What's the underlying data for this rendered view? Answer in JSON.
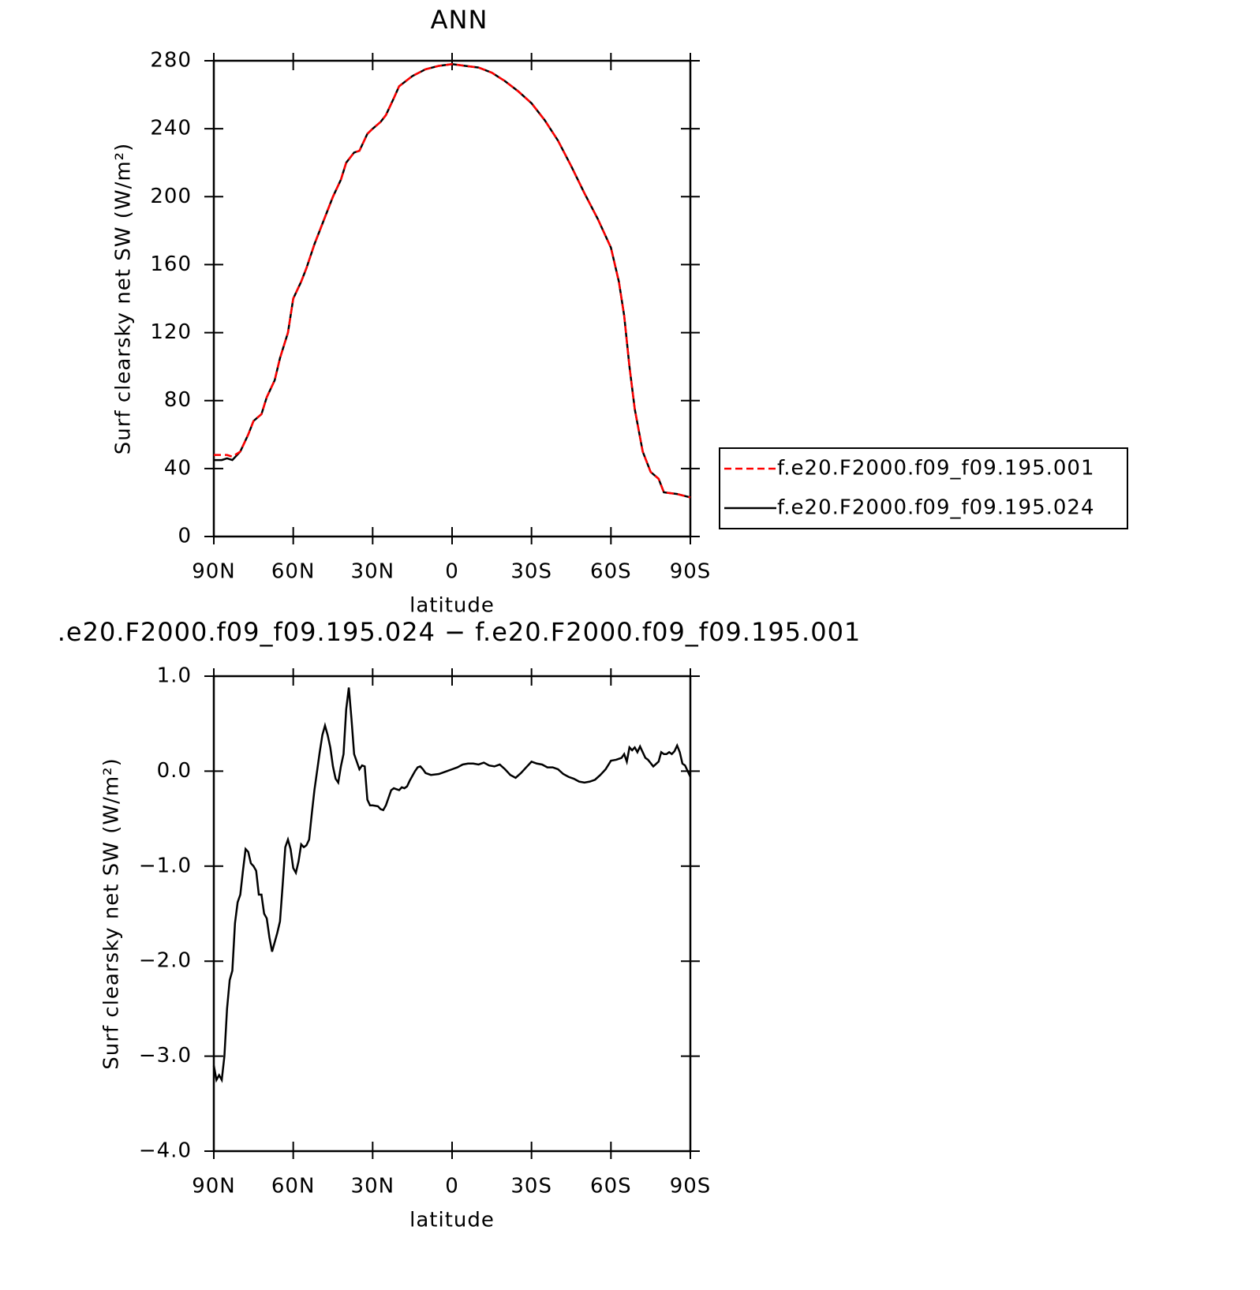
{
  "chart_data": [
    {
      "type": "line",
      "title": "ANN",
      "xlabel": "latitude",
      "ylabel": "Surf clearsky net SW (W/m²)",
      "xlim": [
        90,
        -90
      ],
      "xticks": [
        {
          "value": 90,
          "label": "90N"
        },
        {
          "value": 60,
          "label": "60N"
        },
        {
          "value": 30,
          "label": "30N"
        },
        0,
        {
          "value": -30,
          "label": "30S"
        },
        {
          "value": -60,
          "label": "60S"
        },
        {
          "value": -90,
          "label": "90S"
        }
      ],
      "ylim": [
        0,
        280
      ],
      "yticks": [
        0,
        40,
        80,
        120,
        160,
        200,
        240,
        280
      ],
      "legend": "right",
      "x": [
        90,
        87,
        85,
        83,
        80,
        77,
        75,
        72,
        70,
        67,
        65,
        62,
        60,
        57,
        55,
        52,
        50,
        47,
        45,
        42,
        40,
        37,
        35,
        32,
        30,
        27,
        25,
        22,
        20,
        15,
        10,
        5,
        0,
        -5,
        -10,
        -15,
        -20,
        -25,
        -30,
        -35,
        -40,
        -45,
        -50,
        -55,
        -60,
        -63,
        -65,
        -67,
        -69,
        -72,
        -75,
        -78,
        -80,
        -85,
        -90
      ],
      "series": [
        {
          "name": "f.e20.F2000.f09_f09.195.001",
          "color": "#ff0000",
          "linestyle": "dashed",
          "values": [
            48,
            48,
            48,
            47,
            50,
            60,
            68,
            72,
            82,
            92,
            105,
            120,
            140,
            150,
            158,
            172,
            180,
            192,
            200,
            210,
            220,
            226,
            227,
            237,
            240,
            244,
            248,
            258,
            265,
            271,
            275,
            277,
            278,
            277,
            276,
            273,
            268,
            262,
            255,
            245,
            233,
            218,
            202,
            187,
            170,
            150,
            130,
            100,
            75,
            50,
            38,
            34,
            26,
            25,
            23
          ]
        },
        {
          "name": "f.e20.F2000.f09_f09.195.024",
          "color": "#000000",
          "linestyle": "solid",
          "values": [
            45,
            45,
            46,
            45,
            50,
            60,
            68,
            72,
            82,
            92,
            105,
            120,
            140,
            150,
            158,
            172,
            180,
            192,
            200,
            210,
            220,
            226,
            227,
            237,
            240,
            244,
            248,
            258,
            265,
            271,
            275,
            277,
            278,
            277,
            276,
            273,
            268,
            262,
            255,
            245,
            233,
            218,
            202,
            187,
            170,
            150,
            130,
            100,
            75,
            50,
            38,
            34,
            26,
            25,
            23
          ]
        }
      ]
    },
    {
      "type": "line",
      "title": ".e20.F2000.f09_f09.195.024 − f.e20.F2000.f09_f09.195.001",
      "xlabel": "latitude",
      "ylabel": "Surf clearsky net SW (W/m²)",
      "xlim": [
        90,
        -90
      ],
      "xticks": [
        {
          "value": 90,
          "label": "90N"
        },
        {
          "value": 60,
          "label": "60N"
        },
        {
          "value": 30,
          "label": "30N"
        },
        0,
        {
          "value": -30,
          "label": "30S"
        },
        {
          "value": -60,
          "label": "60S"
        },
        {
          "value": -90,
          "label": "90S"
        }
      ],
      "ylim": [
        -4,
        1
      ],
      "yticks": [
        {
          "value": 1,
          "label": "1.0"
        },
        {
          "value": 0,
          "label": "0.0"
        },
        {
          "value": -1,
          "label": "−1.0"
        },
        {
          "value": -2,
          "label": "−2.0"
        },
        {
          "value": -3,
          "label": "−3.0"
        },
        {
          "value": -4,
          "label": "−4.0"
        }
      ],
      "x": [
        90,
        89,
        88,
        87,
        86,
        85,
        84,
        83,
        82,
        81,
        80,
        79,
        78,
        77,
        76,
        75,
        74,
        73,
        72,
        71,
        70,
        69,
        68,
        67,
        66,
        65,
        64,
        63,
        62,
        61,
        60,
        59,
        58,
        57,
        56,
        55,
        54,
        53,
        52,
        51,
        50,
        49,
        48,
        47,
        46,
        45,
        44,
        43,
        42,
        41,
        40,
        39,
        38,
        37,
        36,
        35,
        34,
        33,
        32,
        31,
        30,
        28,
        27,
        26,
        25,
        24,
        23,
        22,
        21,
        20,
        19,
        18,
        17,
        16,
        15,
        14,
        13,
        12,
        11,
        10,
        8,
        5,
        2,
        0,
        -2,
        -4,
        -6,
        -8,
        -10,
        -12,
        -14,
        -16,
        -17,
        -18,
        -20,
        -22,
        -24,
        -26,
        -28,
        -30,
        -32,
        -34,
        -36,
        -38,
        -40,
        -42,
        -44,
        -46,
        -48,
        -50,
        -52,
        -54,
        -56,
        -58,
        -60,
        -62,
        -64,
        -65,
        -66,
        -67,
        -68,
        -69,
        -70,
        -71,
        -72,
        -73,
        -74,
        -76,
        -78,
        -79,
        -80,
        -81,
        -82,
        -83,
        -84,
        -85,
        -86,
        -87,
        -88,
        -89,
        -90
      ],
      "series": [
        {
          "color": "#000000",
          "linestyle": "solid",
          "values": [
            -3.1,
            -3.25,
            -3.2,
            -3.25,
            -3.0,
            -2.5,
            -2.2,
            -2.1,
            -1.6,
            -1.38,
            -1.3,
            -1.05,
            -0.82,
            -0.85,
            -0.97,
            -1.0,
            -1.05,
            -1.3,
            -1.3,
            -1.5,
            -1.55,
            -1.75,
            -1.9,
            -1.8,
            -1.7,
            -1.58,
            -1.2,
            -0.8,
            -0.72,
            -0.82,
            -1.02,
            -1.07,
            -0.95,
            -0.77,
            -0.8,
            -0.78,
            -0.72,
            -0.45,
            -0.2,
            0.0,
            0.2,
            0.38,
            0.48,
            0.38,
            0.25,
            0.05,
            -0.08,
            -0.12,
            0.05,
            0.18,
            0.65,
            0.88,
            0.55,
            0.18,
            0.1,
            0.02,
            0.06,
            0.05,
            -0.3,
            -0.36,
            -0.36,
            -0.37,
            -0.4,
            -0.41,
            -0.36,
            -0.28,
            -0.2,
            -0.18,
            -0.19,
            -0.2,
            -0.17,
            -0.18,
            -0.16,
            -0.1,
            -0.05,
            0.0,
            0.04,
            0.05,
            0.02,
            -0.02,
            -0.04,
            -0.03,
            0.0,
            0.02,
            0.04,
            0.07,
            0.08,
            0.08,
            0.07,
            0.09,
            0.06,
            0.05,
            0.06,
            0.07,
            0.02,
            -0.04,
            -0.07,
            -0.02,
            0.04,
            0.1,
            0.08,
            0.07,
            0.04,
            0.04,
            0.02,
            -0.03,
            -0.06,
            -0.08,
            -0.11,
            -0.12,
            -0.11,
            -0.09,
            -0.04,
            0.02,
            0.11,
            0.12,
            0.14,
            0.18,
            0.1,
            0.25,
            0.22,
            0.25,
            0.2,
            0.26,
            0.2,
            0.14,
            0.12,
            0.05,
            0.1,
            0.2,
            0.18,
            0.18,
            0.2,
            0.18,
            0.21,
            0.27,
            0.2,
            0.08,
            0.06,
            0.0,
            -0.06
          ]
        }
      ]
    }
  ]
}
